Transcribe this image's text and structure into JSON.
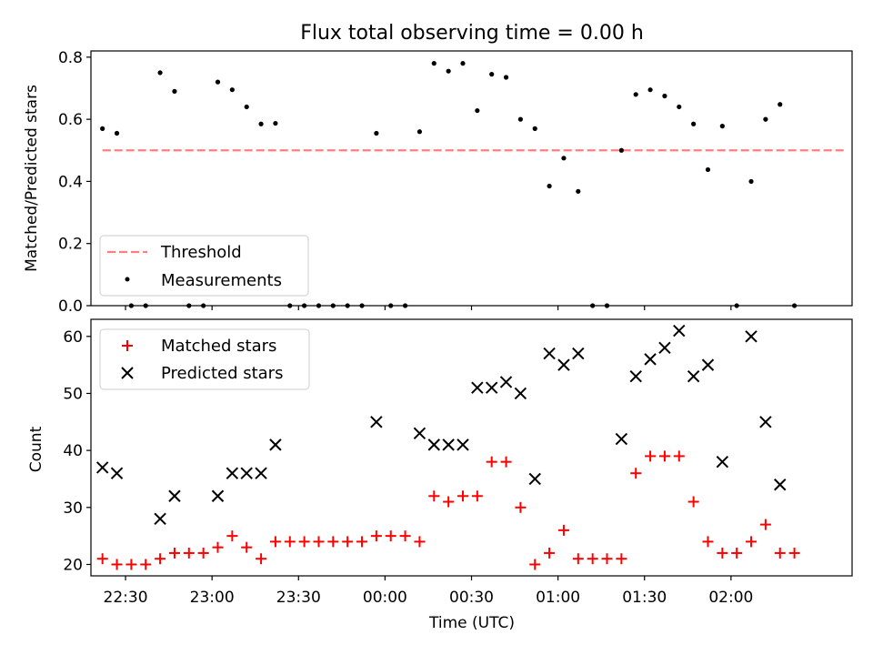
{
  "figure": {
    "title": "Flux total observing time = 0.00 h",
    "xlabel": "Time (UTC)"
  },
  "x_ticks": [
    "22:30",
    "23:00",
    "23:30",
    "00:00",
    "00:30",
    "01:00",
    "01:30",
    "02:00"
  ],
  "chart_data": [
    {
      "type": "scatter",
      "ylabel": "Matched/Predicted stars",
      "ylim": [
        0,
        0.82
      ],
      "yticks": [
        "0.0",
        "0.2",
        "0.4",
        "0.6",
        "0.8"
      ],
      "xlim": [
        "22:18",
        "02:42"
      ],
      "legend_position": "lower-left",
      "x": [
        "22:22",
        "22:27",
        "22:32",
        "22:37",
        "22:42",
        "22:47",
        "22:52",
        "22:57",
        "23:02",
        "23:07",
        "23:12",
        "23:17",
        "23:22",
        "23:27",
        "23:32",
        "23:37",
        "23:42",
        "23:47",
        "23:52",
        "23:57",
        "00:02",
        "00:07",
        "00:12",
        "00:17",
        "00:22",
        "00:27",
        "00:32",
        "00:37",
        "00:42",
        "00:47",
        "00:52",
        "00:57",
        "01:02",
        "01:07",
        "01:12",
        "01:17",
        "01:22",
        "01:27",
        "01:32",
        "01:37",
        "01:42",
        "01:47",
        "01:52",
        "01:57",
        "02:02",
        "02:07",
        "02:12",
        "02:17"
      ],
      "series": [
        {
          "name": "Threshold",
          "style": "dashed-line",
          "color": "#ff7f7f",
          "x": [
            "22:22",
            "02:40"
          ],
          "values": [
            0.5,
            0.5
          ]
        },
        {
          "name": "Measurements",
          "style": "dot",
          "color": "#000000",
          "values": [
            0.57,
            0.555,
            0.0,
            0.0,
            0.75,
            0.69,
            0.0,
            0.0,
            0.72,
            0.695,
            0.64,
            0.585,
            0.587,
            0.0,
            0.0,
            0.0,
            0.0,
            0.0,
            0.0,
            0.555,
            0.0,
            0.0,
            0.56,
            0.78,
            0.755,
            0.78,
            0.628,
            0.745,
            0.735,
            0.6,
            0.57,
            0.385,
            0.475,
            0.368,
            0.0,
            0.0,
            0.5,
            0.68,
            0.695,
            0.675,
            0.64,
            0.585,
            0.438,
            0.578,
            0.0,
            0.4,
            0.6,
            0.648,
            0.0
          ],
          "x_override": [
            "22:22",
            "22:27",
            "22:32",
            "22:37",
            "22:42",
            "22:47",
            "22:52",
            "22:57",
            "23:02",
            "23:07",
            "23:12",
            "23:17",
            "23:22",
            "23:27",
            "23:32",
            "23:37",
            "23:42",
            "23:47",
            "23:52",
            "23:57",
            "00:02",
            "00:07",
            "00:12",
            "00:17",
            "00:22",
            "00:27",
            "00:32",
            "00:37",
            "00:42",
            "00:47",
            "00:52",
            "00:57",
            "01:02",
            "01:07",
            "01:12",
            "01:17",
            "01:22",
            "01:27",
            "01:32",
            "01:37",
            "01:42",
            "01:47",
            "01:52",
            "01:57",
            "02:02",
            "02:07",
            "02:12",
            "02:17",
            "02:22"
          ]
        }
      ]
    },
    {
      "type": "scatter",
      "ylabel": "Count",
      "ylim": [
        18,
        63
      ],
      "yticks": [
        "20",
        "30",
        "40",
        "50",
        "60"
      ],
      "xlim": [
        "22:18",
        "02:42"
      ],
      "legend_position": "upper-left",
      "x": [
        "22:22",
        "22:27",
        "22:32",
        "22:37",
        "22:42",
        "22:47",
        "22:52",
        "22:57",
        "23:02",
        "23:07",
        "23:12",
        "23:17",
        "23:22",
        "23:27",
        "23:32",
        "23:37",
        "23:42",
        "23:47",
        "23:52",
        "23:57",
        "00:02",
        "00:07",
        "00:12",
        "00:17",
        "00:22",
        "00:27",
        "00:32",
        "00:37",
        "00:42",
        "00:47",
        "00:52",
        "00:57",
        "01:02",
        "01:07",
        "01:12",
        "01:17",
        "01:22",
        "01:27",
        "01:32",
        "01:37",
        "01:42",
        "01:47",
        "01:52",
        "01:57",
        "02:02",
        "02:07",
        "02:12",
        "02:17",
        "02:22"
      ],
      "series": [
        {
          "name": "Matched stars",
          "style": "plus",
          "color": "#ff0000",
          "values": [
            21,
            20,
            20,
            20,
            21,
            22,
            22,
            22,
            23,
            25,
            23,
            21,
            24,
            24,
            24,
            24,
            24,
            24,
            24,
            25,
            25,
            25,
            24,
            32,
            31,
            32,
            32,
            38,
            38,
            30,
            20,
            22,
            26,
            21,
            21,
            21,
            21,
            36,
            39,
            39,
            39,
            31,
            24,
            22,
            22,
            24,
            27,
            22,
            22
          ]
        },
        {
          "name": "Predicted stars",
          "style": "x",
          "color": "#000000",
          "values": [
            37,
            36,
            null,
            null,
            28,
            32,
            null,
            null,
            32,
            36,
            36,
            36,
            41,
            null,
            null,
            null,
            null,
            null,
            null,
            45,
            null,
            null,
            43,
            41,
            41,
            41,
            51,
            51,
            52,
            50,
            35,
            57,
            55,
            57,
            null,
            null,
            42,
            53,
            56,
            58,
            61,
            53,
            55,
            38,
            null,
            60,
            45,
            34,
            null
          ]
        }
      ]
    }
  ]
}
